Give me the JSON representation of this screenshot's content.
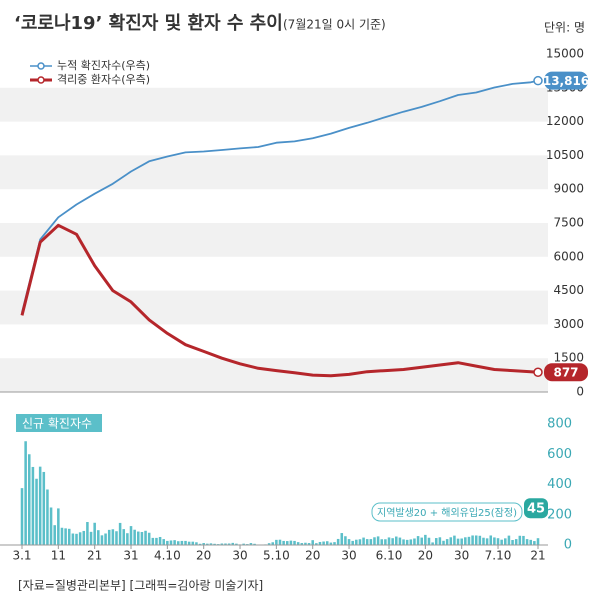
{
  "title": "‘코로나19’ 확진자 및 환자 수 추이",
  "subtitle": "(7월21일 0시 기준)",
  "unit": "단위: 명",
  "footer": "[자료=질병관리본부] [그래픽=김아랑 미술기자]",
  "chart_data": [
    {
      "type": "line",
      "xlim": [
        0,
        142
      ],
      "ylim": [
        0,
        15000
      ],
      "yticks": [
        0,
        1500,
        3000,
        4500,
        6000,
        7500,
        9000,
        10500,
        12000,
        13500,
        15000
      ],
      "grid": true,
      "legend": "upper left",
      "x": [
        0,
        5,
        10,
        15,
        20,
        25,
        30,
        35,
        40,
        45,
        50,
        55,
        60,
        65,
        70,
        75,
        80,
        85,
        90,
        95,
        100,
        105,
        110,
        115,
        120,
        125,
        130,
        135,
        140,
        142
      ],
      "series": [
        {
          "name": "누적 확진자수(우측)",
          "color": "#4a90c8",
          "values": [
            3526,
            6767,
            7755,
            8320,
            8799,
            9241,
            9786,
            10237,
            10450,
            10635,
            10674,
            10738,
            10810,
            10874,
            11065,
            11122,
            11265,
            11468,
            11719,
            11947,
            12198,
            12438,
            12653,
            12904,
            13181,
            13293,
            13512,
            13672,
            13745,
            13816
          ],
          "value_labels": [
            null,
            null,
            null,
            null,
            null,
            null,
            null,
            null,
            null,
            null,
            null,
            null,
            null,
            null,
            null,
            null,
            null,
            null,
            null,
            null,
            null,
            null,
            null,
            null,
            null,
            null,
            null,
            null,
            null,
            "13,816"
          ]
        },
        {
          "name": "격리중 환자수(우측)",
          "color": "#b5262b",
          "values": [
            3400,
            6650,
            7400,
            7000,
            5600,
            4500,
            4000,
            3200,
            2600,
            2100,
            1800,
            1500,
            1250,
            1050,
            950,
            850,
            750,
            720,
            780,
            900,
            950,
            1000,
            1100,
            1200,
            1300,
            1150,
            1000,
            950,
            900,
            877
          ],
          "value_labels": [
            null,
            null,
            null,
            null,
            null,
            null,
            null,
            null,
            null,
            null,
            null,
            null,
            null,
            null,
            null,
            null,
            null,
            null,
            null,
            null,
            null,
            null,
            null,
            null,
            null,
            null,
            null,
            null,
            null,
            "877"
          ]
        }
      ]
    },
    {
      "type": "bar",
      "title": "신규 확진자수",
      "xlim": [
        0,
        142
      ],
      "ylim": [
        0,
        800
      ],
      "yticks": [
        0,
        200,
        400,
        600,
        800
      ],
      "color": "#5bbfc9",
      "annotation": "지역발생20 + 해외유입25(잠정)",
      "xticks": [
        {
          "value": 0,
          "label": "3.1"
        },
        {
          "value": 10,
          "label": "11"
        },
        {
          "value": 20,
          "label": "21"
        },
        {
          "value": 30,
          "label": "31"
        },
        {
          "value": 40,
          "label": "4.10"
        },
        {
          "value": 50,
          "label": "20"
        },
        {
          "value": 60,
          "label": "30"
        },
        {
          "value": 70,
          "label": "5.10"
        },
        {
          "value": 80,
          "label": "20"
        },
        {
          "value": 90,
          "label": "30"
        },
        {
          "value": 101,
          "label": "6.10"
        },
        {
          "value": 111,
          "label": "20"
        },
        {
          "value": 121,
          "label": "30"
        },
        {
          "value": 131,
          "label": "7.10"
        },
        {
          "value": 142,
          "label": "21"
        }
      ],
      "values": [
        376,
        686,
        600,
        516,
        438,
        518,
        483,
        367,
        248,
        131,
        242,
        114,
        110,
        107,
        76,
        74,
        84,
        93,
        152,
        87,
        147,
        98,
        64,
        76,
        100,
        104,
        91,
        146,
        105,
        78,
        125,
        101,
        89,
        86,
        94,
        81,
        47,
        47,
        53,
        39,
        27,
        30,
        32,
        25,
        27,
        27,
        22,
        22,
        18,
        8,
        13,
        9,
        11,
        8,
        6,
        10,
        10,
        10,
        14,
        9,
        4,
        9,
        6,
        13,
        8,
        3,
        2,
        4,
        12,
        18,
        34,
        35,
        27,
        26,
        29,
        27,
        19,
        13,
        15,
        13,
        32,
        12,
        20,
        23,
        25,
        16,
        19,
        40,
        79,
        58,
        39,
        27,
        35,
        38,
        49,
        39,
        39,
        51,
        57,
        38,
        38,
        50,
        45,
        56,
        49,
        37,
        34,
        37,
        43,
        59,
        49,
        67,
        48,
        17,
        46,
        51,
        28,
        39,
        51,
        62,
        42,
        43,
        51,
        54,
        63,
        63,
        61,
        48,
        44,
        63,
        50,
        45,
        35,
        44,
        62,
        33,
        39,
        61,
        60,
        39,
        34,
        26,
        45
      ]
    }
  ]
}
